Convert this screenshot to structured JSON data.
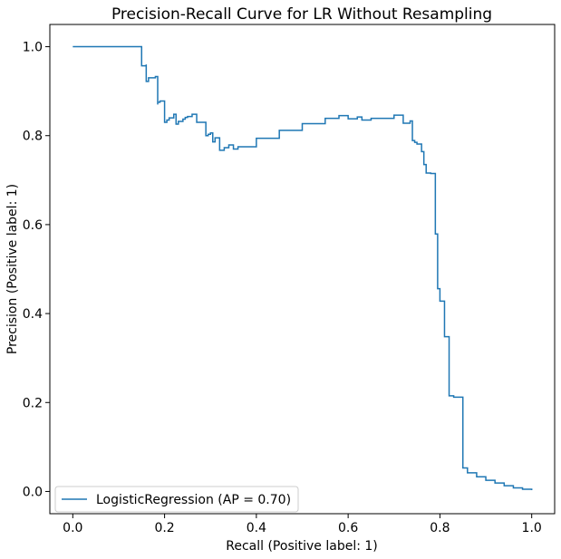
{
  "chart_data": {
    "type": "line",
    "title": "Precision-Recall Curve for LR Without Resampling",
    "xlabel": "Recall (Positive label: 1)",
    "ylabel": "Precision (Positive label: 1)",
    "xlim": [
      -0.05,
      1.05
    ],
    "ylim": [
      -0.05,
      1.05
    ],
    "xticks": [
      0.0,
      0.2,
      0.4,
      0.6,
      0.8,
      1.0
    ],
    "xtick_labels": [
      "0.0",
      "0.2",
      "0.4",
      "0.6",
      "0.8",
      "1.0"
    ],
    "yticks": [
      0.0,
      0.2,
      0.4,
      0.6,
      0.8,
      1.0
    ],
    "ytick_labels": [
      "0.0",
      "0.2",
      "0.4",
      "0.6",
      "0.8",
      "1.0"
    ],
    "grid": false,
    "legend_position": "lower-left",
    "series": [
      {
        "name": "LogisticRegression (AP = 0.70)",
        "color": "#1f77b4",
        "drawstyle": "steps-post",
        "x": [
          0.0,
          0.15,
          0.15,
          0.16,
          0.16,
          0.165,
          0.165,
          0.18,
          0.185,
          0.185,
          0.19,
          0.195,
          0.2,
          0.2,
          0.205,
          0.21,
          0.22,
          0.225,
          0.23,
          0.24,
          0.245,
          0.25,
          0.26,
          0.27,
          0.28,
          0.29,
          0.295,
          0.3,
          0.305,
          0.31,
          0.32,
          0.33,
          0.34,
          0.35,
          0.36,
          0.4,
          0.45,
          0.5,
          0.55,
          0.58,
          0.6,
          0.62,
          0.63,
          0.65,
          0.7,
          0.72,
          0.72,
          0.735,
          0.74,
          0.745,
          0.75,
          0.76,
          0.765,
          0.77,
          0.78,
          0.79,
          0.795,
          0.8,
          0.81,
          0.82,
          0.83,
          0.84,
          0.85,
          0.86,
          0.88,
          0.9,
          0.92,
          0.94,
          0.96,
          0.98,
          1.0
        ],
        "y": [
          1.0,
          1.0,
          0.957,
          0.96,
          0.922,
          0.922,
          0.93,
          0.933,
          0.87,
          0.875,
          0.878,
          0.878,
          0.83,
          0.83,
          0.835,
          0.84,
          0.848,
          0.826,
          0.832,
          0.837,
          0.841,
          0.843,
          0.848,
          0.83,
          0.83,
          0.8,
          0.803,
          0.806,
          0.786,
          0.795,
          0.767,
          0.773,
          0.779,
          0.77,
          0.775,
          0.794,
          0.812,
          0.827,
          0.839,
          0.845,
          0.838,
          0.842,
          0.835,
          0.839,
          0.846,
          0.834,
          0.828,
          0.833,
          0.789,
          0.785,
          0.781,
          0.764,
          0.735,
          0.716,
          0.715,
          0.579,
          0.456,
          0.428,
          0.348,
          0.215,
          0.212,
          0.212,
          0.053,
          0.042,
          0.033,
          0.025,
          0.019,
          0.013,
          0.008,
          0.005,
          0.003
        ]
      }
    ]
  }
}
